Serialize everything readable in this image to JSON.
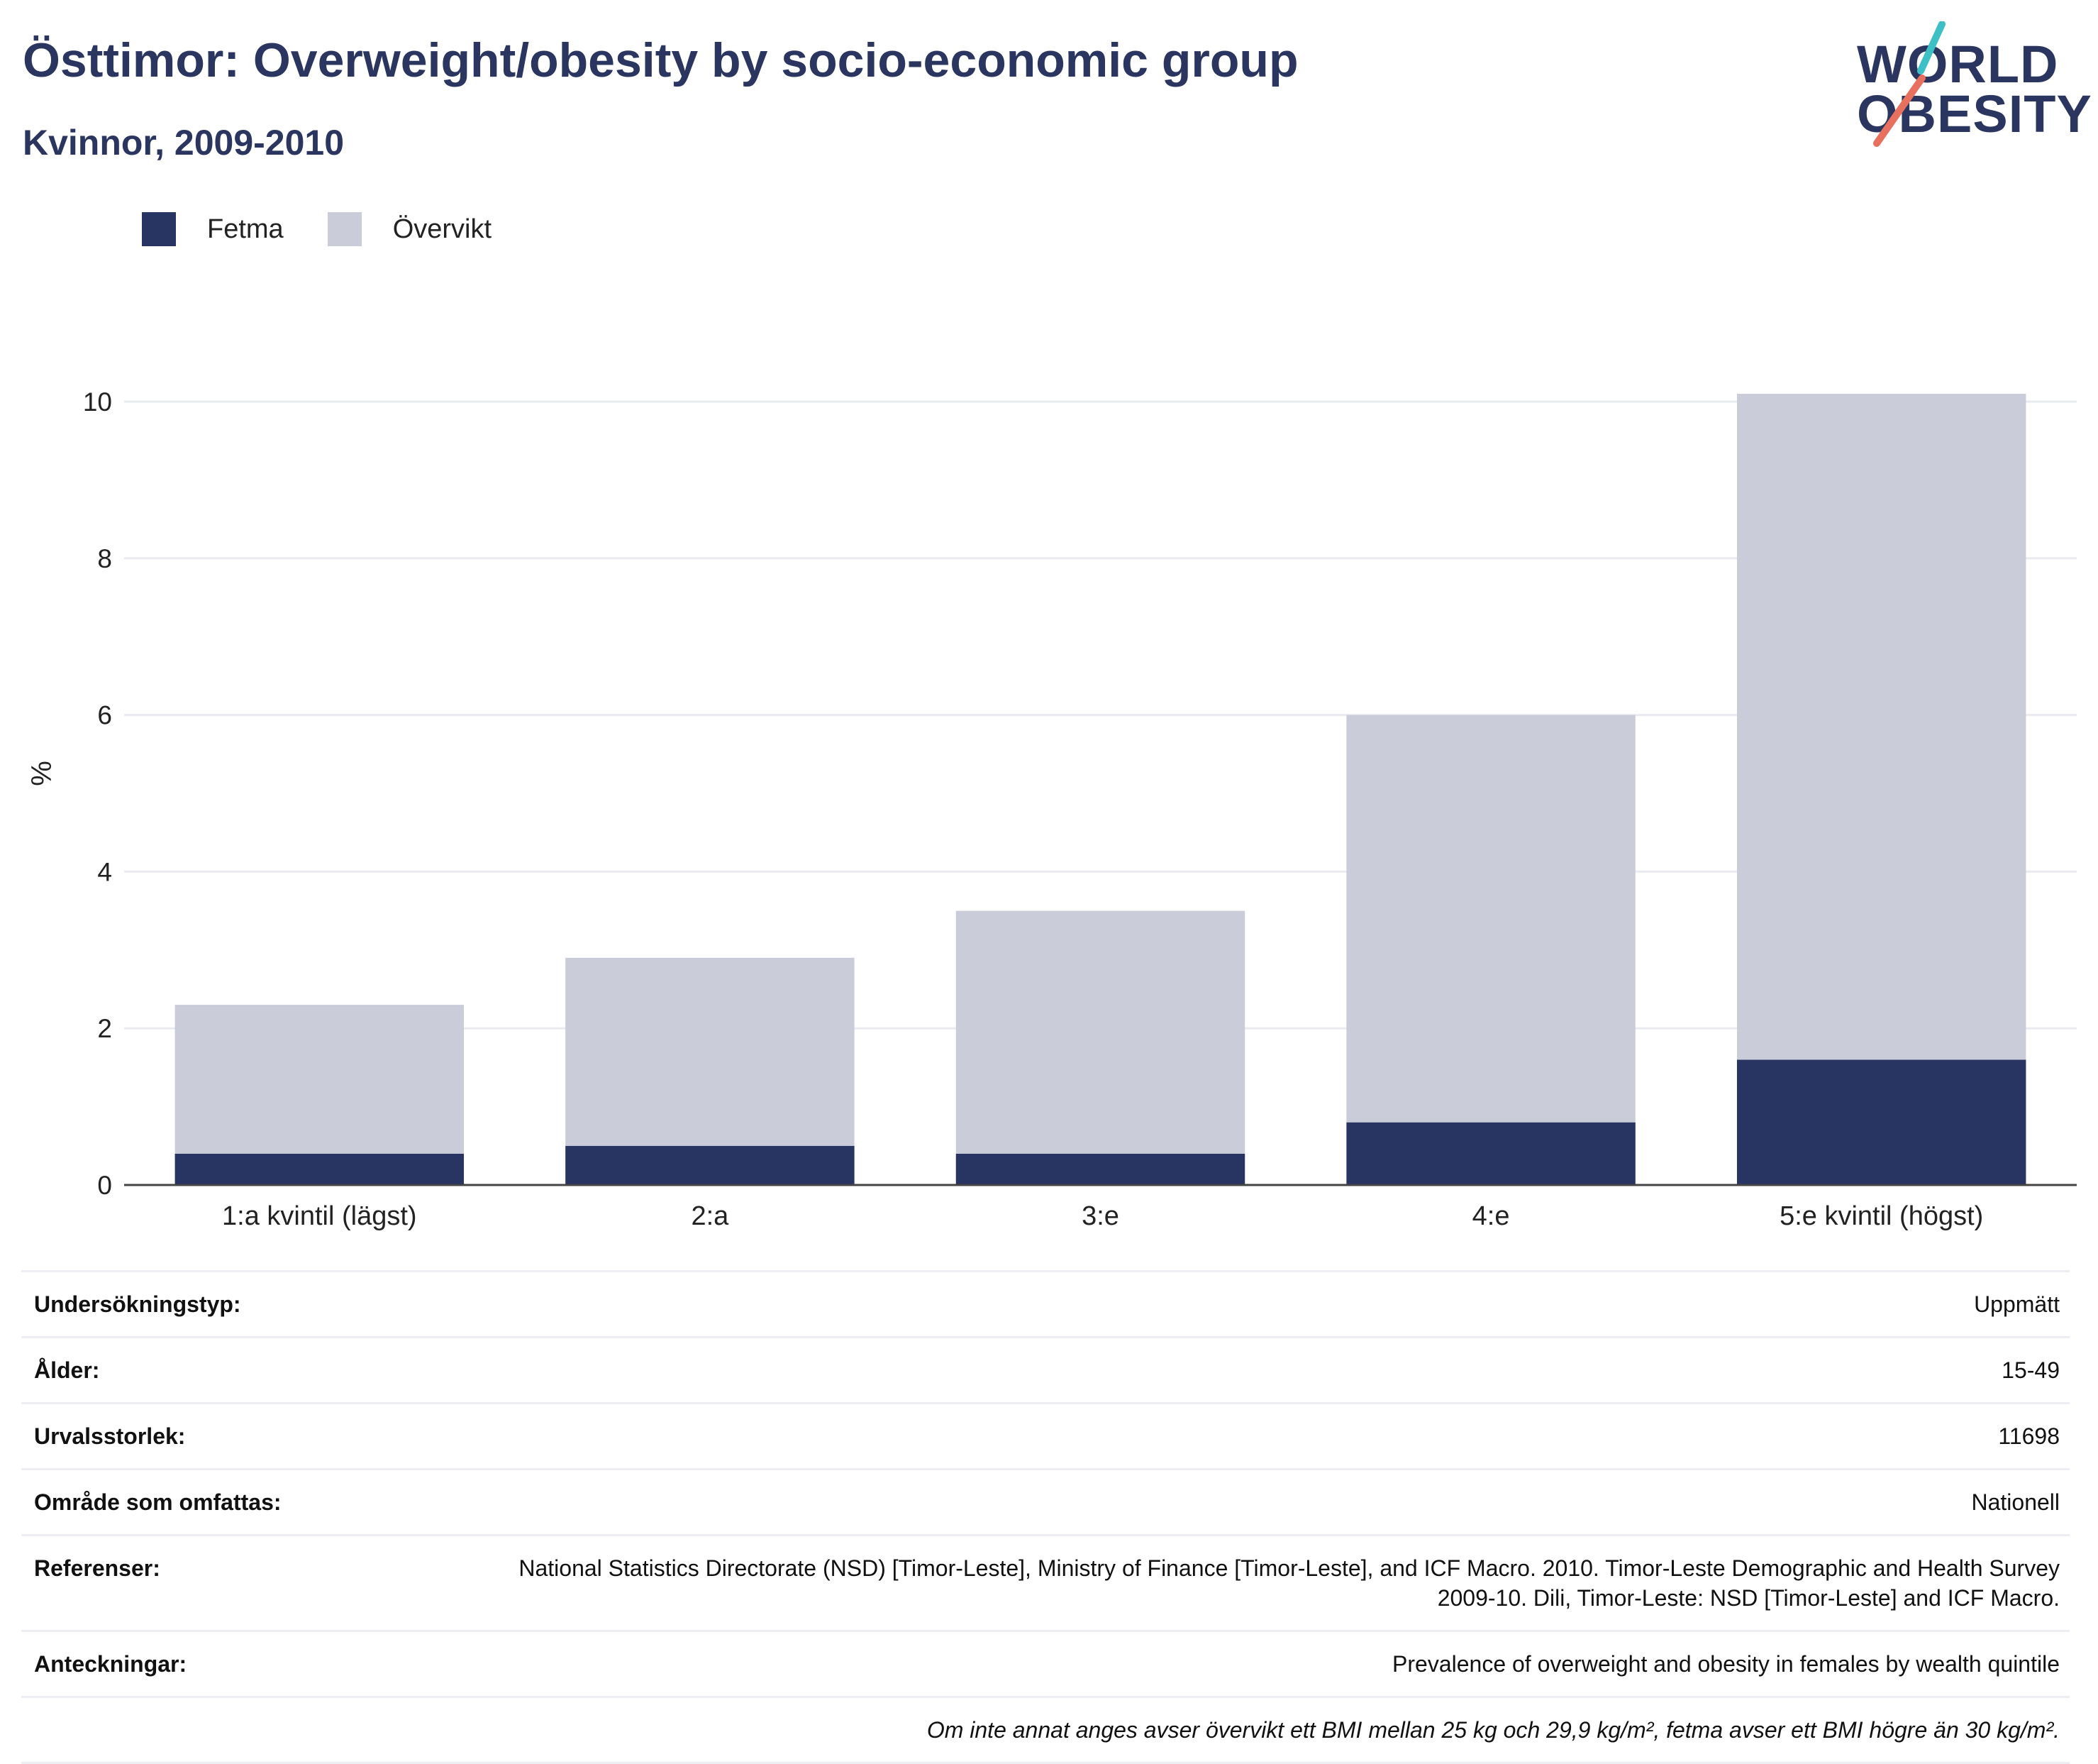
{
  "header": {
    "title": "Östtimor: Overweight/obesity by socio-economic group",
    "subtitle": "Kvinnor, 2009-2010"
  },
  "logo": {
    "line1": "WORLD",
    "line2": "OBESITY",
    "accent_colors": [
      "#3cbfc5",
      "#e8705e"
    ]
  },
  "legend": [
    {
      "label": "Fetma",
      "color": "#283562"
    },
    {
      "label": "Övervikt",
      "color": "#cacdd9"
    }
  ],
  "chart_data": {
    "type": "bar",
    "stacked": true,
    "categories": [
      "1:a kvintil (lägst)",
      "2:a",
      "3:e",
      "4:e",
      "5:e kvintil (högst)"
    ],
    "series": [
      {
        "name": "Fetma",
        "color": "#283562",
        "values": [
          0.4,
          0.5,
          0.4,
          0.8,
          1.6
        ]
      },
      {
        "name": "Övervikt",
        "color": "#cacdd9",
        "values": [
          1.9,
          2.4,
          3.1,
          5.2,
          8.5
        ]
      }
    ],
    "ylabel": "%",
    "ylim": [
      0,
      10
    ],
    "yticks": [
      0,
      2,
      4,
      6,
      8,
      10
    ],
    "grid": true,
    "legend_position": "top-left"
  },
  "info_table": {
    "rows": [
      {
        "key": "Undersökningstyp:",
        "value": "Uppmätt"
      },
      {
        "key": "Ålder:",
        "value": "15-49"
      },
      {
        "key": "Urvalsstorlek:",
        "value": "11698"
      },
      {
        "key": "Område som omfattas:",
        "value": "Nationell"
      },
      {
        "key": "Referenser:",
        "value": "National Statistics Directorate (NSD) [Timor-Leste], Ministry of Finance [Timor-Leste], and ICF Macro. 2010. Timor-Leste Demographic and Health Survey 2009-10. Dili, Timor-Leste: NSD [Timor-Leste] and ICF Macro."
      },
      {
        "key": "Anteckningar:",
        "value": "Prevalence of overweight and obesity in females by wealth quintile"
      }
    ],
    "footnote": "Om inte annat anges avser övervikt ett BMI mellan 25 kg och 29,9 kg/m², fetma avser ett BMI högre än 30 kg/m²."
  }
}
